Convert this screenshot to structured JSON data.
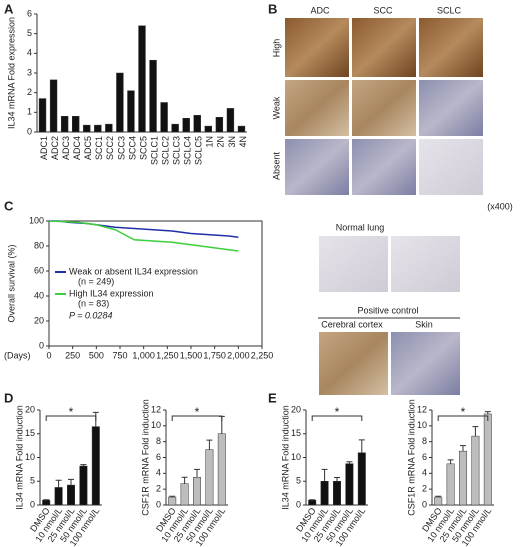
{
  "panel_labels": [
    "A",
    "B",
    "C",
    "D",
    "E"
  ],
  "staining": {
    "columns": [
      "ADC",
      "SCC",
      "SCLC"
    ],
    "rows": [
      "High",
      "Weak",
      "Absent"
    ],
    "magnification": "(x400)",
    "normal_title": "Normal lung",
    "control_title": "Positive control",
    "control_tissues": [
      "Cerebral cortex",
      "Skin"
    ]
  },
  "chart_data": [
    {
      "type": "bar",
      "ylabel": "IL34 mRNA Fold expression",
      "color": "#111111",
      "categories": [
        "ADC1",
        "ADC2",
        "ADC3",
        "ADC4",
        "ADC5",
        "SCC1",
        "SCC2",
        "SCC3",
        "SCC4",
        "SCC5",
        "SCLC1",
        "SCLC2",
        "SCLC3",
        "SCLC4",
        "SCLC5",
        "1N",
        "2N",
        "3N",
        "4N"
      ],
      "values": [
        1.7,
        2.65,
        0.8,
        0.8,
        0.35,
        0.35,
        0.4,
        3.0,
        2.1,
        5.4,
        3.65,
        1.5,
        0.4,
        0.7,
        0.85,
        0.3,
        0.75,
        1.2,
        0.3
      ],
      "ylim": [
        0,
        6
      ],
      "yticks": [
        0,
        1,
        2,
        3,
        4,
        5,
        6
      ]
    },
    {
      "type": "line",
      "ylabel": "Overall survival (%)",
      "xlabel": "(Days)",
      "annotation": "P = 0.0284",
      "series": [
        {
          "name": "Weak or absent IL34 expression",
          "n_label": "(n = 249)",
          "color": "#1f2fa8",
          "x": [
            0,
            100,
            200,
            400,
            600,
            700,
            900,
            1100,
            1300,
            1500,
            1700,
            1900,
            2000
          ],
          "values": [
            100,
            100,
            99,
            98,
            96,
            95,
            94,
            93,
            92,
            90,
            89,
            88,
            87
          ]
        },
        {
          "name": "High IL34 expression",
          "n_label": "(n = 83)",
          "color": "#3ccf3c",
          "x": [
            0,
            300,
            500,
            700,
            750,
            900,
            1100,
            1300,
            1500,
            1700,
            1900,
            2000
          ],
          "values": [
            100,
            99,
            97,
            93,
            91,
            85,
            84,
            83,
            81,
            79,
            77,
            76
          ]
        }
      ],
      "xlim": [
        0,
        2250
      ],
      "xticks": [
        0,
        250,
        500,
        750,
        {
          "value": 1000,
          "label": "1,000"
        },
        {
          "value": 1250,
          "label": "1,250"
        },
        {
          "value": 1500,
          "label": "1,500"
        },
        {
          "value": 1750,
          "label": "1,750"
        },
        {
          "value": 2000,
          "label": "2,000"
        },
        {
          "value": 2250,
          "label": "2,250"
        }
      ],
      "ylim": [
        0,
        100
      ],
      "yticks": [
        0,
        20,
        40,
        60,
        80,
        100
      ]
    },
    {
      "type": "bar",
      "ylabel": "IL34 mRNA Fold induction",
      "color": "#111111",
      "significance_label": "*",
      "categories": [
        "DMSO",
        "10 nmol/L",
        "25 nmol/L",
        "50 nmol/L",
        "100 nmol/L"
      ],
      "values": [
        1,
        3.7,
        4.2,
        8.2,
        16.5
      ],
      "errors": [
        0.1,
        1.5,
        1.2,
        0.3,
        3.0
      ],
      "ylim": [
        0,
        20
      ],
      "yticks": [
        0,
        5,
        10,
        15,
        20
      ]
    },
    {
      "type": "bar",
      "ylabel": "CSF1R mRNA Fold induction",
      "color": "#bdbdbd",
      "significance_label": "*",
      "categories": [
        "DMSO",
        "10 nmol/L",
        "25 nmol/L",
        "50 nmol/L",
        "100 nmol/L"
      ],
      "values": [
        1,
        2.7,
        3.5,
        7,
        9
      ],
      "errors": [
        0.1,
        0.8,
        1.0,
        1.2,
        2.2
      ],
      "ylim": [
        0,
        12
      ],
      "yticks": [
        0,
        2,
        4,
        6,
        8,
        10,
        12
      ]
    },
    {
      "type": "bar",
      "ylabel": "IL34 mRNA Fold induction",
      "color": "#111111",
      "significance_label": "*",
      "categories": [
        "DMSO",
        "10 nmol/L",
        "25 nmol/L",
        "50 nmol/L",
        "100 nmol/L"
      ],
      "values": [
        1,
        5,
        5,
        8.7,
        11
      ],
      "errors": [
        0.1,
        2.5,
        0.8,
        0.4,
        2.7
      ],
      "ylim": [
        0,
        20
      ],
      "yticks": [
        0,
        5,
        10,
        15,
        20
      ]
    },
    {
      "type": "bar",
      "ylabel": "CSF1R mRNA Fold induction",
      "color": "#bdbdbd",
      "significance_label": "*",
      "categories": [
        "DMSO",
        "10 nmol/L",
        "25 nmol/L",
        "50 nmol/L",
        "100 nmol/L"
      ],
      "values": [
        1,
        5.2,
        6.8,
        8.7,
        11.5
      ],
      "errors": [
        0.1,
        0.5,
        0.7,
        1.2,
        0.3
      ],
      "ylim": [
        0,
        12
      ],
      "yticks": [
        0,
        2,
        4,
        6,
        8,
        10,
        12
      ]
    }
  ]
}
